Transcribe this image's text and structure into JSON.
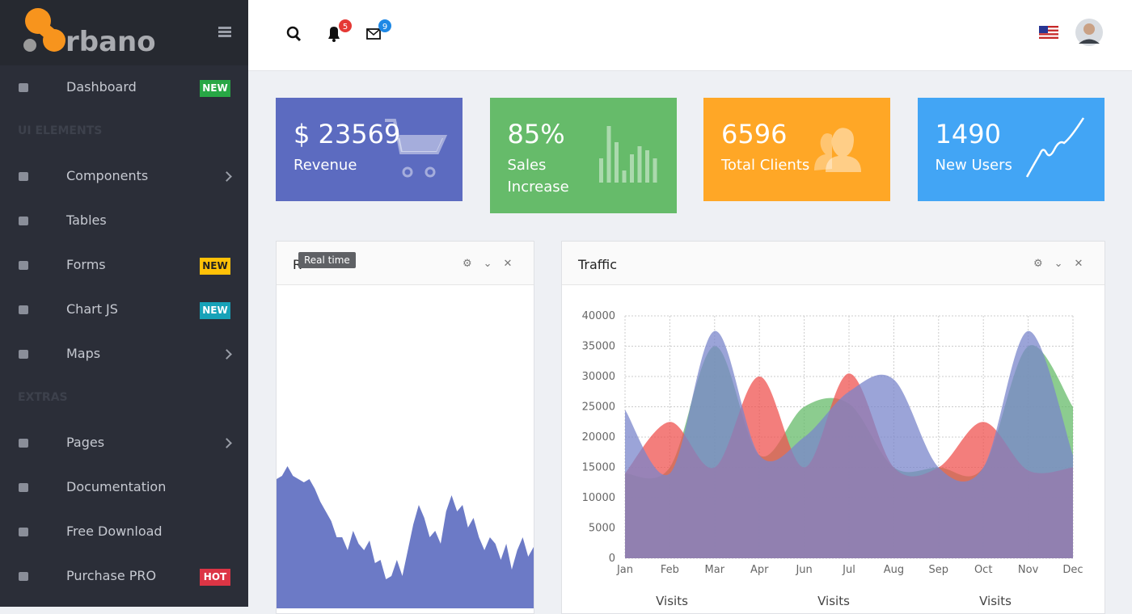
{
  "logo": "rbano",
  "nav": [
    {
      "label": "Dashboard",
      "badge": "NEW",
      "badge_color": "#28a745"
    },
    {
      "section": "UI ELEMENTS"
    },
    {
      "label": "Components",
      "submenu": true
    },
    {
      "label": "Tables"
    },
    {
      "label": "Forms",
      "badge": "NEW",
      "badge_color": "#ffc107"
    },
    {
      "label": "Chart JS",
      "badge": "NEW",
      "badge_color": "#17a2b8"
    },
    {
      "label": "Maps",
      "submenu": true
    },
    {
      "section": "EXTRAS"
    },
    {
      "label": "Pages",
      "submenu": true
    },
    {
      "label": "Documentation"
    },
    {
      "label": "Free Download"
    },
    {
      "label": "Purchase PRO",
      "badge": "HOT",
      "badge_color": "#dc3545"
    }
  ],
  "header": {
    "notifications": "5",
    "messages": "9"
  },
  "stats": [
    {
      "value": "$ 23569",
      "label": "Revenue",
      "color": "#5c6bc0"
    },
    {
      "value": "85%",
      "label": "Sales Increase",
      "color": "#66bb6a"
    },
    {
      "value": "6596",
      "label": "Total Clients",
      "color": "#ffa726"
    },
    {
      "value": "1490",
      "label": "New Users",
      "color": "#42a5f5"
    }
  ],
  "realtime": {
    "type": "area",
    "title": "R",
    "tooltip": "Real time",
    "color": "#5c6bc0",
    "ylim": [
      0,
      100
    ],
    "values": [
      40,
      41,
      44,
      41,
      40,
      39,
      40,
      37,
      33,
      30,
      27,
      22,
      22,
      18,
      24,
      20,
      18,
      21,
      14,
      15,
      9,
      10,
      15,
      10,
      18,
      26,
      32,
      28,
      22,
      24,
      20,
      30,
      35,
      30,
      32,
      25,
      28,
      22,
      18,
      22,
      20,
      15,
      20,
      12,
      18,
      22,
      16,
      19
    ]
  },
  "traffic": {
    "type": "area",
    "title": "Traffic",
    "categories": [
      "Jan",
      "Feb",
      "Mar",
      "Apr",
      "Jun",
      "Jul",
      "Aug",
      "Sep",
      "Oct",
      "Nov",
      "Dec"
    ],
    "ylim": [
      0,
      40000
    ],
    "yticks": [
      0,
      5000,
      10000,
      15000,
      20000,
      25000,
      30000,
      35000,
      40000
    ],
    "grid": true,
    "series": [
      {
        "name": "Visits",
        "color": "#66bb6a",
        "values": [
          14000,
          15000,
          35000,
          17000,
          25000,
          25500,
          15000,
          15000,
          15000,
          35000,
          25000
        ]
      },
      {
        "name": "Visits",
        "color": "#ef5350",
        "values": [
          14000,
          22500,
          15000,
          30000,
          15000,
          30500,
          15000,
          15000,
          22500,
          14500,
          15000
        ]
      },
      {
        "name": "Visits",
        "color": "#7986cb",
        "values": [
          24500,
          14000,
          37500,
          17000,
          20000,
          27500,
          29500,
          15000,
          15000,
          37500,
          17000
        ]
      }
    ]
  }
}
